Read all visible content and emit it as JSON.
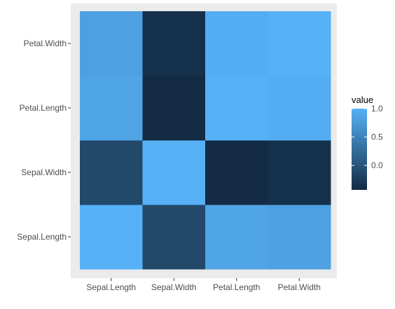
{
  "chart_data": {
    "type": "heatmap",
    "title": "",
    "xlabel": "",
    "ylabel": "",
    "x_categories": [
      "Sepal.Length",
      "Sepal.Width",
      "Petal.Length",
      "Petal.Width"
    ],
    "y_categories": [
      "Sepal.Length",
      "Sepal.Width",
      "Petal.Length",
      "Petal.Width"
    ],
    "values": [
      [
        1.0,
        -0.12,
        0.87,
        0.82
      ],
      [
        -0.12,
        1.0,
        -0.43,
        -0.37
      ],
      [
        0.87,
        -0.43,
        1.0,
        0.96
      ],
      [
        0.82,
        -0.37,
        0.96,
        1.0
      ]
    ],
    "color_scale": {
      "low": "#132B43",
      "high": "#56B1F7",
      "min": -0.43,
      "max": 1.0
    },
    "legend": {
      "title": "value",
      "position": "right",
      "ticks": [
        {
          "value": 1.0,
          "label": "1.0"
        },
        {
          "value": 0.5,
          "label": "0.5"
        },
        {
          "value": 0.0,
          "label": "0.0"
        }
      ]
    },
    "panel_background": "#EBEBEB",
    "grid": true
  }
}
